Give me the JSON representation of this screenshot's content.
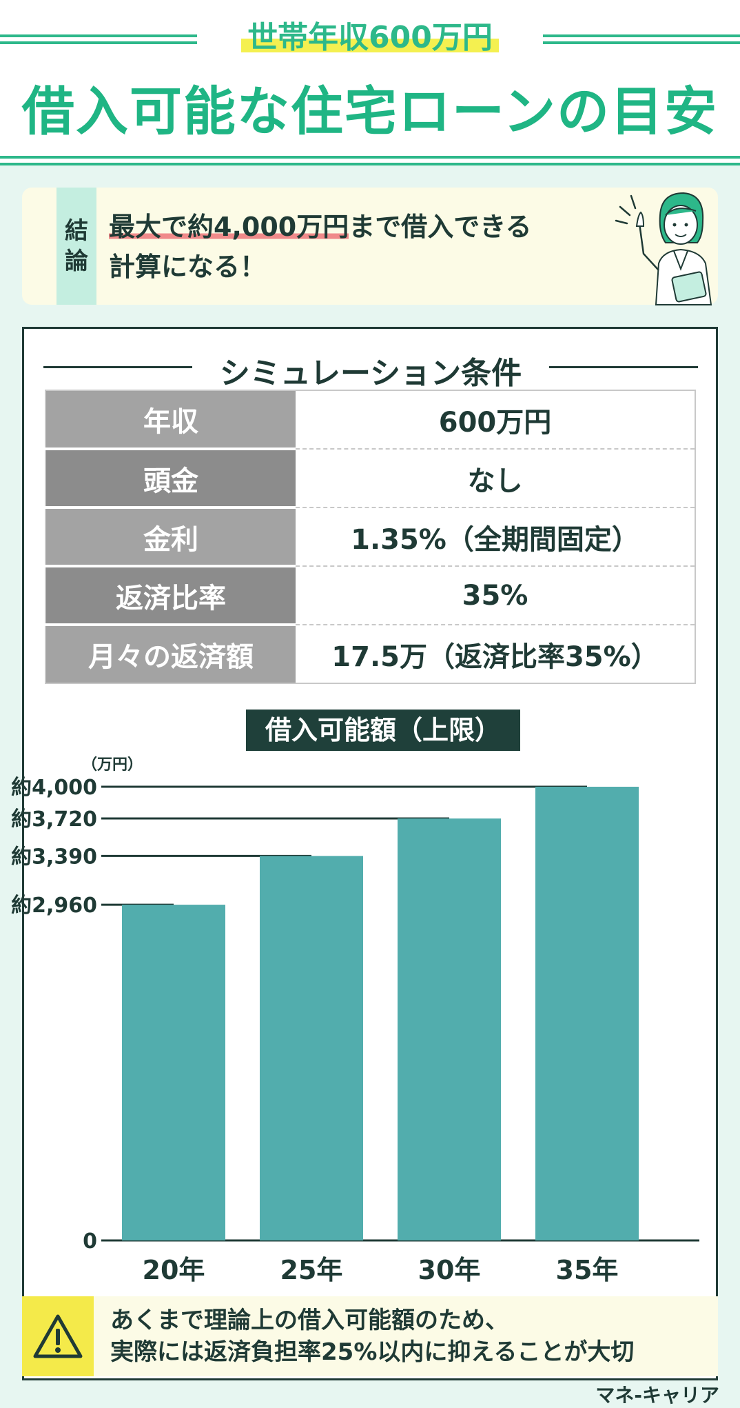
{
  "header": {
    "badge": "世帯年収600万円",
    "title": "借入可能な住宅ローンの目安"
  },
  "conclusion": {
    "tag": [
      "結",
      "論"
    ],
    "highlight": "最大で約4,000万円",
    "text_after_highlight": "まで借入できる",
    "line2": "計算になる！"
  },
  "simulation": {
    "title": "シミュレーション条件",
    "rows": [
      {
        "label": "年収",
        "value": "600万円"
      },
      {
        "label": "頭金",
        "value": "なし"
      },
      {
        "label": "金利",
        "value": "1.35%（全期間固定）"
      },
      {
        "label": "返済比率",
        "value": "35%"
      },
      {
        "label": "月々の返済額",
        "value": "17.5万（返済比率35%）"
      }
    ]
  },
  "chart_data": {
    "type": "bar",
    "title": "借入可能額（上限）",
    "unit": "（万円）",
    "categories": [
      "20年",
      "25年",
      "30年",
      "35年"
    ],
    "values": [
      2960,
      3390,
      3720,
      4000
    ],
    "tick_labels": [
      {
        "value": 4000,
        "label": "約4,000"
      },
      {
        "value": 3720,
        "label": "約3,720"
      },
      {
        "value": 3390,
        "label": "約3,390"
      },
      {
        "value": 2960,
        "label": "約2,960"
      },
      {
        "value": 0,
        "label": "0"
      }
    ],
    "ylim": [
      0,
      4000
    ],
    "bar_color": "#52adad",
    "grid": false
  },
  "warning": {
    "icon": "warning-icon",
    "line1": "あくまで理論上の借入可能額のため、",
    "line2": "実際には返済負担率25%以内に抑えることが大切"
  },
  "brand": "マネ-キャリア",
  "colors": {
    "accent": "#1fb584",
    "dark": "#1f3a35",
    "highlight_yellow": "#f4f050",
    "background": "#e7f6f1"
  }
}
